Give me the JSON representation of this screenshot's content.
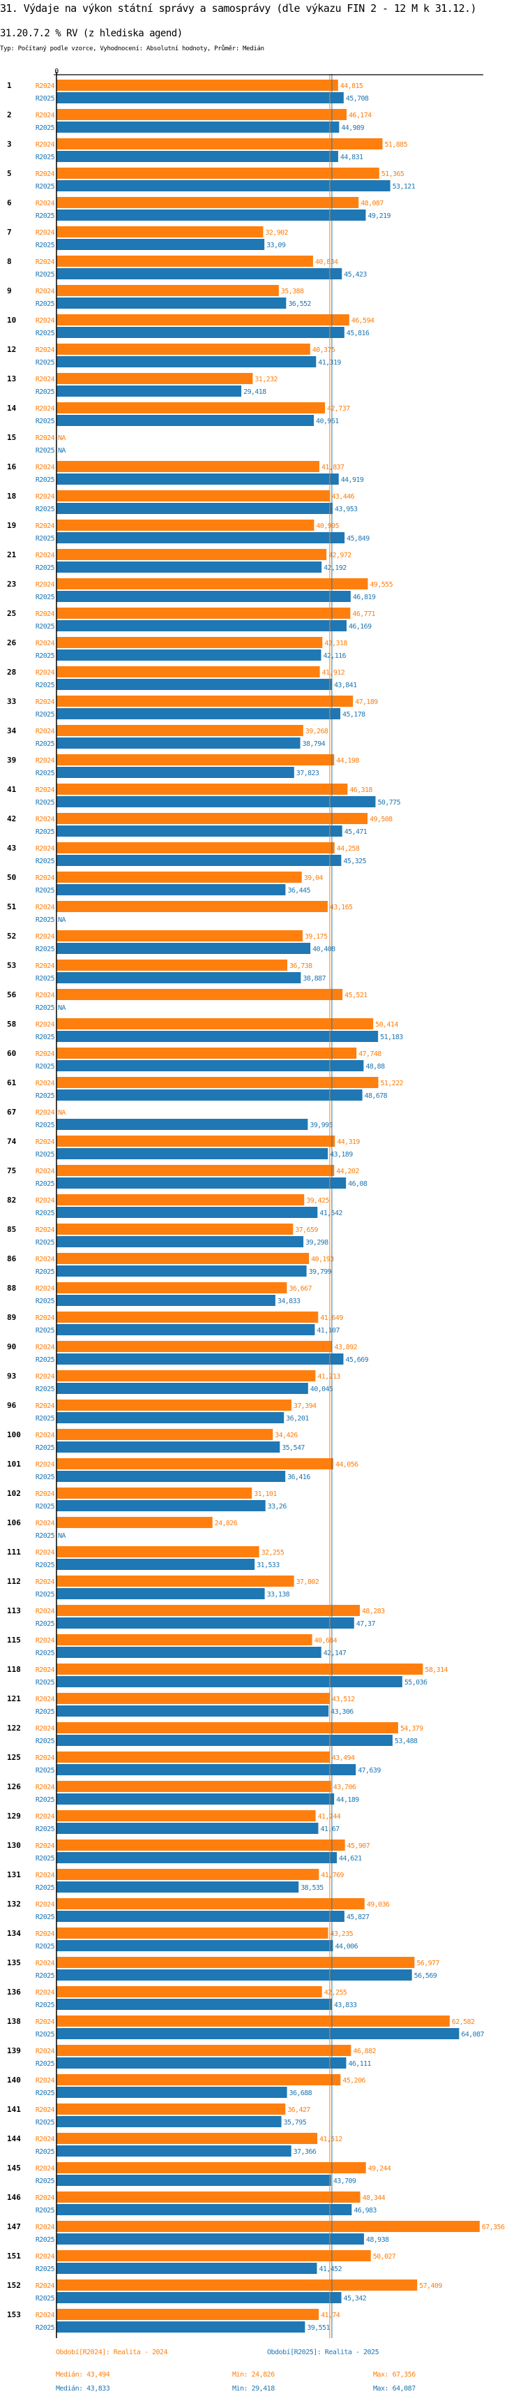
{
  "header": {
    "title": "31. Výdaje na výkon státní správy a samosprávy (dle výkazu FIN 2 - 12 M k 31.12.)",
    "subtitle": "31.20.7.2 % RV (z hlediska agend)",
    "meta": "Typ: Počítaný podle vzorce, Vyhodnocení: Absolutní hodnoty, Průměr: Medián"
  },
  "colors": {
    "R2024": "#ff7f0e",
    "R2025": "#1f77b4",
    "axis": "#000000"
  },
  "chart_data": {
    "type": "bar",
    "orientation": "horizontal",
    "title": "31.20.7.2 % RV (z hlediska agend)",
    "xlabel": "",
    "ylabel": "",
    "x_tick_labels": [
      "0"
    ],
    "xlim": [
      0,
      68
    ],
    "grid": false,
    "na_label": "NA",
    "categories": [
      "1",
      "2",
      "3",
      "5",
      "6",
      "7",
      "8",
      "9",
      "10",
      "12",
      "13",
      "14",
      "15",
      "16",
      "18",
      "19",
      "21",
      "23",
      "25",
      "26",
      "28",
      "33",
      "34",
      "39",
      "41",
      "42",
      "43",
      "50",
      "51",
      "52",
      "53",
      "56",
      "58",
      "60",
      "61",
      "67",
      "74",
      "75",
      "82",
      "85",
      "86",
      "88",
      "89",
      "90",
      "93",
      "96",
      "100",
      "101",
      "102",
      "106",
      "111",
      "112",
      "113",
      "115",
      "118",
      "121",
      "122",
      "125",
      "126",
      "129",
      "130",
      "131",
      "132",
      "134",
      "135",
      "136",
      "138",
      "139",
      "140",
      "141",
      "144",
      "145",
      "146",
      "147",
      "151",
      "152",
      "153"
    ],
    "series": [
      {
        "name": "R2024",
        "color": "#ff7f0e",
        "values": [
          44.815,
          46.174,
          51.885,
          51.365,
          48.087,
          32.902,
          40.834,
          35.388,
          46.594,
          40.375,
          31.232,
          42.737,
          null,
          41.837,
          43.446,
          40.995,
          42.972,
          49.555,
          46.771,
          42.318,
          41.912,
          47.189,
          39.268,
          44.198,
          46.318,
          49.508,
          44.258,
          39.04,
          43.165,
          39.175,
          36.738,
          45.521,
          50.414,
          47.748,
          51.222,
          null,
          44.319,
          44.202,
          39.425,
          37.659,
          40.193,
          36.667,
          41.649,
          43.892,
          41.213,
          37.394,
          34.426,
          44.056,
          31.101,
          24.826,
          32.255,
          37.802,
          48.283,
          40.684,
          58.314,
          43.512,
          54.379,
          43.494,
          43.706,
          41.244,
          45.907,
          41.769,
          49.036,
          43.235,
          56.977,
          42.255,
          62.582,
          46.882,
          45.206,
          36.427,
          41.512,
          49.244,
          48.344,
          67.356,
          50.027,
          57.409,
          41.74
        ],
        "labels": [
          "44,815",
          "46,174",
          "51,885",
          "51,365",
          "48,087",
          "32,902",
          "40,834",
          "35,388",
          "46,594",
          "40,375",
          "31,232",
          "42,737",
          "NA",
          "41,837",
          "43,446",
          "40,995",
          "42,972",
          "49,555",
          "46,771",
          "42,318",
          "41,912",
          "47,189",
          "39,268",
          "44,198",
          "46,318",
          "49,508",
          "44,258",
          "39,04",
          "43,165",
          "39,175",
          "36,738",
          "45,521",
          "50,414",
          "47,748",
          "51,222",
          "NA",
          "44,319",
          "44,202",
          "39,425",
          "37,659",
          "40,193",
          "36,667",
          "41,649",
          "43,892",
          "41,213",
          "37,394",
          "34,426",
          "44,056",
          "31,101",
          "24,826",
          "32,255",
          "37,802",
          "48,283",
          "40,684",
          "58,314",
          "43,512",
          "54,379",
          "43,494",
          "43,706",
          "41,244",
          "45,907",
          "41,769",
          "49,036",
          "43,235",
          "56,977",
          "42,255",
          "62,582",
          "46,882",
          "45,206",
          "36,427",
          "41,512",
          "49,244",
          "48,344",
          "67,356",
          "50,027",
          "57,409",
          "41,74"
        ],
        "median": 43.494,
        "min": 24.826,
        "max": 67.356
      },
      {
        "name": "R2025",
        "color": "#1f77b4",
        "values": [
          45.708,
          44.989,
          44.831,
          53.121,
          49.219,
          33.09,
          45.423,
          36.552,
          45.816,
          41.319,
          29.418,
          40.961,
          null,
          44.919,
          43.953,
          45.849,
          42.192,
          46.819,
          46.169,
          42.116,
          43.841,
          45.178,
          38.794,
          37.823,
          50.775,
          45.471,
          45.325,
          36.445,
          null,
          40.408,
          38.887,
          null,
          51.183,
          48.88,
          48.678,
          39.995,
          43.189,
          46.08,
          41.542,
          39.298,
          39.799,
          34.833,
          41.107,
          45.669,
          40.045,
          36.201,
          35.547,
          36.416,
          33.26,
          null,
          31.533,
          33.138,
          47.37,
          42.147,
          55.036,
          43.306,
          53.488,
          47.639,
          44.189,
          41.67,
          44.621,
          38.535,
          45.827,
          44.006,
          56.569,
          43.833,
          64.087,
          46.111,
          36.688,
          35.795,
          37.366,
          43.709,
          46.983,
          48.938,
          41.452,
          45.342,
          39.551
        ],
        "labels": [
          "45,708",
          "44,989",
          "44,831",
          "53,121",
          "49,219",
          "33,09",
          "45,423",
          "36,552",
          "45,816",
          "41,319",
          "29,418",
          "40,961",
          "NA",
          "44,919",
          "43,953",
          "45,849",
          "42,192",
          "46,819",
          "46,169",
          "42,116",
          "43,841",
          "45,178",
          "38,794",
          "37,823",
          "50,775",
          "45,471",
          "45,325",
          "36,445",
          "NA",
          "40,408",
          "38,887",
          "NA",
          "51,183",
          "48,88",
          "48,678",
          "39,995",
          "43,189",
          "46,08",
          "41,542",
          "39,298",
          "39,799",
          "34,833",
          "41,107",
          "45,669",
          "40,045",
          "36,201",
          "35,547",
          "36,416",
          "33,26",
          "NA",
          "31,533",
          "33,138",
          "47,37",
          "42,147",
          "55,036",
          "43,306",
          "53,488",
          "47,639",
          "44,189",
          "41,67",
          "44,621",
          "38,535",
          "45,827",
          "44,006",
          "56,569",
          "43,833",
          "64,087",
          "46,111",
          "36,688",
          "35,795",
          "37,366",
          "43,709",
          "46,983",
          "48,938",
          "41,452",
          "45,342",
          "39,551"
        ],
        "median": 43.833,
        "min": 29.418,
        "max": 64.087
      }
    ],
    "reference_lines": [
      {
        "series": "R2024",
        "type": "median",
        "value": 43.494
      },
      {
        "series": "R2025",
        "type": "median",
        "value": 43.833
      }
    ],
    "legend": {
      "placement": "bottom",
      "items": [
        {
          "series": "R2024",
          "text": "Období[R2024]: Realita - 2024"
        },
        {
          "series": "R2025",
          "text": "Období[R2025]: Realita - 2025"
        }
      ]
    }
  },
  "footer": {
    "legend_r2024": "Období[R2024]: Realita - 2024",
    "legend_r2025": "Období[R2025]: Realita - 2025",
    "r2024_median": "Medián: 43,494",
    "r2024_min": "Min: 24,826",
    "r2024_max": "Max: 67,356",
    "r2025_median": "Medián: 43,833",
    "r2025_min": "Min: 29,418",
    "r2025_max": "Max: 64,087"
  }
}
